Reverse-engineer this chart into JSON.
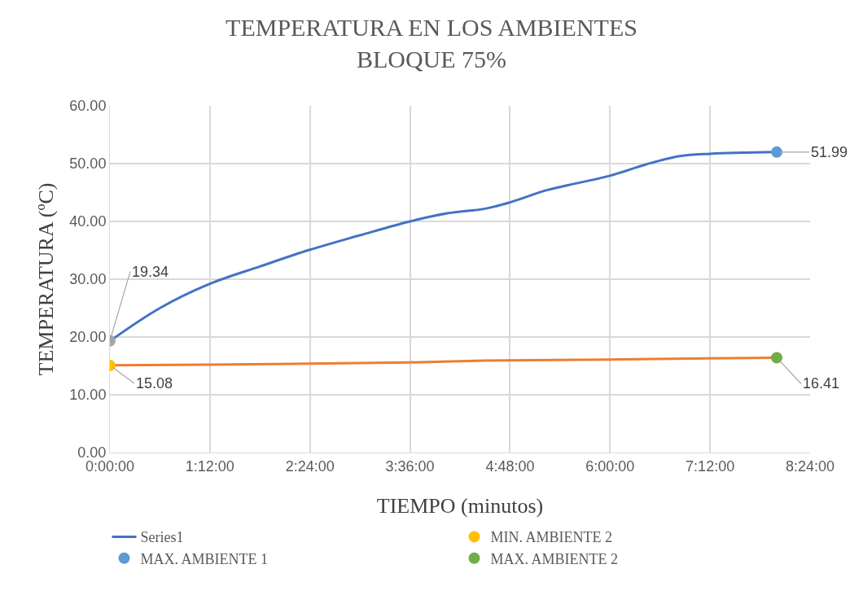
{
  "chart_data": {
    "type": "line",
    "title": "TEMPERATURA EN LOS AMBIENTES\nBLOQUE 75%",
    "xlabel": "TIEMPO (minutos)",
    "ylabel": "TEMPERATURA (ºC)",
    "xlim": [
      0,
      8.4
    ],
    "xticks": [
      {
        "value": 0,
        "label": "0:00:00"
      },
      {
        "value": 1.2,
        "label": "1:12:00"
      },
      {
        "value": 2.4,
        "label": "2:24:00"
      },
      {
        "value": 3.6,
        "label": "3:36:00"
      },
      {
        "value": 4.8,
        "label": "4:48:00"
      },
      {
        "value": 6,
        "label": "6:00:00"
      },
      {
        "value": 7.2,
        "label": "7:12:00"
      },
      {
        "value": 8.4,
        "label": "8:24:00"
      }
    ],
    "ylim": [
      0,
      60
    ],
    "yticks": [
      {
        "value": 0,
        "label": "0.00"
      },
      {
        "value": 10,
        "label": "10.00"
      },
      {
        "value": 20,
        "label": "20.00"
      },
      {
        "value": 30,
        "label": "30.00"
      },
      {
        "value": 40,
        "label": "40.00"
      },
      {
        "value": 50,
        "label": "50.00"
      },
      {
        "value": 60,
        "label": "60.00"
      }
    ],
    "grid": true,
    "legend": "bottom",
    "series": [
      {
        "name": "Series1",
        "color": "#4472c4",
        "x": [
          0,
          0.6,
          1.2,
          1.8,
          2.4,
          3.0,
          3.6,
          4.05,
          4.5,
          4.8,
          5.24,
          5.6,
          6.0,
          6.44,
          6.84,
          7.2,
          8.0
        ],
        "values": [
          19.3,
          25.0,
          29.2,
          32.2,
          35.1,
          37.6,
          40.0,
          41.4,
          42.2,
          43.3,
          45.4,
          46.6,
          47.9,
          49.9,
          51.3,
          51.7,
          52.0
        ]
      },
      {
        "color": "#ed7d31",
        "x": [
          0,
          1.2,
          2.4,
          3.6,
          4.5,
          6.0,
          7.2,
          8.0
        ],
        "values": [
          15.1,
          15.2,
          15.4,
          15.6,
          15.9,
          16.1,
          16.3,
          16.4
        ]
      },
      {
        "type": "scatter",
        "color": "#a5a5a5",
        "x": [
          0
        ],
        "values": [
          19.34
        ],
        "value_labels": [
          "19.34"
        ]
      },
      {
        "name": "MIN. AMBIENTE 2",
        "type": "scatter",
        "color": "#ffc000",
        "x": [
          0
        ],
        "values": [
          15.08
        ],
        "value_labels": [
          "15.08"
        ]
      },
      {
        "name": "MAX. AMBIENTE 1",
        "type": "scatter",
        "color": "#5b9bd5",
        "x": [
          8.0
        ],
        "values": [
          51.99
        ],
        "value_labels": [
          "51.99"
        ]
      },
      {
        "name": "MAX. AMBIENTE 2",
        "type": "scatter",
        "color": "#70ad47",
        "x": [
          8.0
        ],
        "values": [
          16.41
        ],
        "value_labels": [
          "16.41"
        ]
      }
    ]
  }
}
